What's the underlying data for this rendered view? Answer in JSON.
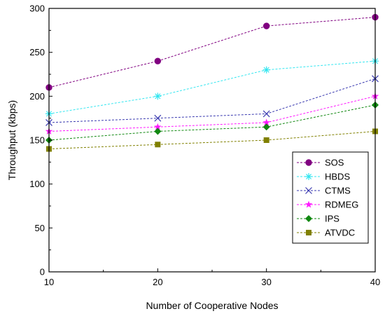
{
  "chart_data": {
    "type": "line",
    "title": "",
    "xlabel": "Number of Cooperative Nodes",
    "ylabel": "Throughput (kbps)",
    "x": [
      10,
      20,
      30,
      40
    ],
    "xlim": [
      10,
      40
    ],
    "ylim": [
      0,
      300
    ],
    "x_ticks": [
      10,
      20,
      30,
      40
    ],
    "y_ticks": [
      0,
      50,
      100,
      150,
      200,
      250,
      300
    ],
    "grid": false,
    "legend_position": "right",
    "series": [
      {
        "name": "SOS",
        "values": [
          210,
          240,
          280,
          290
        ],
        "color": "#800080",
        "marker": "circle"
      },
      {
        "name": "HBDS",
        "values": [
          180,
          200,
          230,
          240
        ],
        "color": "#33e6f0",
        "marker": "asterisk"
      },
      {
        "name": "CTMS",
        "values": [
          170,
          175,
          180,
          220
        ],
        "color": "#3a3ab0",
        "marker": "x"
      },
      {
        "name": "RDMEG",
        "values": [
          160,
          165,
          170,
          200
        ],
        "color": "#ff19ff",
        "marker": "star"
      },
      {
        "name": "IPS",
        "values": [
          150,
          160,
          165,
          190
        ],
        "color": "#118811",
        "marker": "diamond"
      },
      {
        "name": "ATVDC",
        "values": [
          140,
          145,
          150,
          160
        ],
        "color": "#808000",
        "marker": "square"
      }
    ]
  }
}
